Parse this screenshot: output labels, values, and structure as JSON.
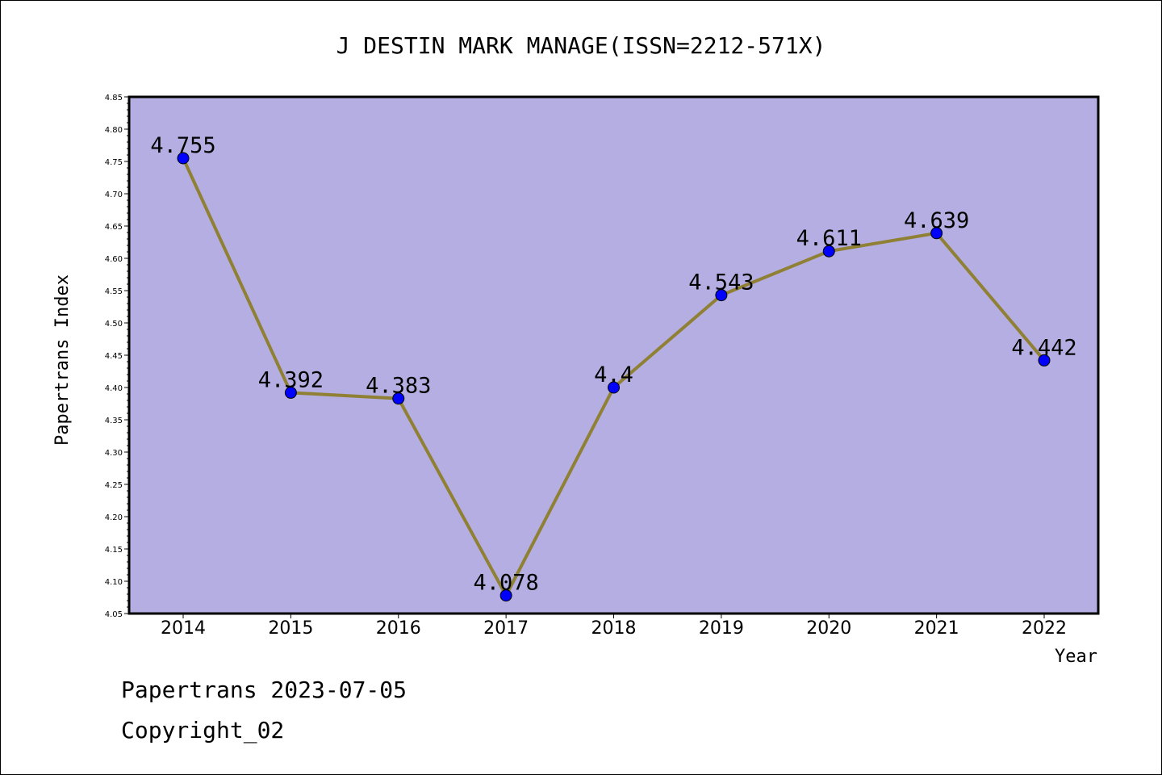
{
  "chart_data": {
    "type": "line",
    "title": "J DESTIN MARK MANAGE(ISSN=2212-571X)",
    "xlabel": "Year",
    "ylabel": "Papertrans Index",
    "categories": [
      "2014",
      "2015",
      "2016",
      "2017",
      "2018",
      "2019",
      "2020",
      "2021",
      "2022"
    ],
    "values": [
      4.755,
      4.392,
      4.383,
      4.078,
      4.4,
      4.543,
      4.611,
      4.639,
      4.442
    ],
    "data_labels": [
      "4.755",
      "4.392",
      "4.383",
      "4.078",
      "4.4",
      "4.543",
      "4.611",
      "4.639",
      "4.442"
    ],
    "ylim": [
      4.05,
      4.85
    ],
    "yticks": [
      "4.05",
      "4.10",
      "4.15",
      "4.20",
      "4.25",
      "4.30",
      "4.35",
      "4.40",
      "4.45",
      "4.50",
      "4.55",
      "4.60",
      "4.65",
      "4.70",
      "4.75",
      "4.80",
      "4.85"
    ],
    "grid": false,
    "colors": {
      "plot_background": "#b4aee2",
      "line": "#8f8034",
      "marker": "#0000ff"
    }
  },
  "footer": {
    "date_line": "Papertrans 2023-07-05",
    "copyright": "Copyright_02"
  }
}
